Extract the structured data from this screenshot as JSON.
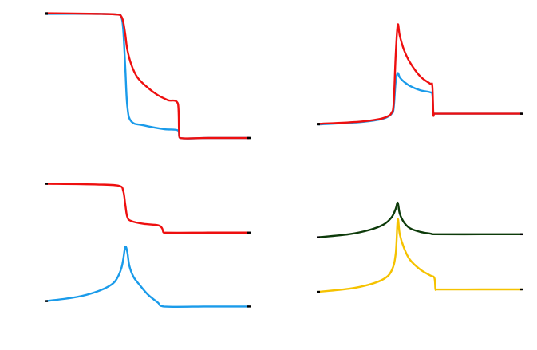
{
  "chart_data": [
    {
      "type": "line",
      "panel": "top-left",
      "xlim": [
        0,
        100
      ],
      "ylim": [
        0,
        1
      ],
      "grid": false,
      "series": [
        {
          "color": "#1a9bea",
          "points": [
            [
              0,
              0.985
            ],
            [
              25,
              0.985
            ],
            [
              35,
              0.98
            ],
            [
              37,
              0.96
            ],
            [
              38,
              0.85
            ],
            [
              39,
              0.55
            ],
            [
              40,
              0.25
            ],
            [
              42,
              0.13
            ],
            [
              48,
              0.1
            ],
            [
              58,
              0.07
            ],
            [
              65,
              0.06
            ],
            [
              66,
              0.0
            ],
            [
              80,
              0.0
            ],
            [
              100,
              0.0
            ]
          ]
        },
        {
          "color": "#ee0f0f",
          "points": [
            [
              0,
              0.99
            ],
            [
              25,
              0.985
            ],
            [
              35,
              0.98
            ],
            [
              37,
              0.965
            ],
            [
              38,
              0.92
            ],
            [
              39,
              0.82
            ],
            [
              40,
              0.7
            ],
            [
              42,
              0.58
            ],
            [
              45,
              0.48
            ],
            [
              50,
              0.4
            ],
            [
              55,
              0.34
            ],
            [
              60,
              0.3
            ],
            [
              65,
              0.27
            ],
            [
              65.5,
              0.05
            ],
            [
              66,
              0.0
            ],
            [
              80,
              0.0
            ],
            [
              100,
              0.0
            ]
          ]
        }
      ]
    },
    {
      "type": "line",
      "panel": "top-right",
      "xlim": [
        0,
        100
      ],
      "ylim": [
        0,
        1
      ],
      "grid": false,
      "series": [
        {
          "color": "#1a9bea",
          "points": [
            [
              0,
              0.0
            ],
            [
              20,
              0.02
            ],
            [
              30,
              0.045
            ],
            [
              34,
              0.07
            ],
            [
              36,
              0.1
            ],
            [
              37,
              0.15
            ],
            [
              38,
              0.4
            ],
            [
              39,
              0.48
            ],
            [
              40,
              0.44
            ],
            [
              42,
              0.4
            ],
            [
              45,
              0.36
            ],
            [
              50,
              0.32
            ],
            [
              55,
              0.3
            ],
            [
              56,
              0.28
            ],
            [
              56.5,
              0.1
            ],
            [
              57,
              0.1
            ],
            [
              80,
              0.1
            ],
            [
              100,
              0.1
            ]
          ]
        },
        {
          "color": "#ee0f0f",
          "points": [
            [
              0,
              0.005
            ],
            [
              20,
              0.025
            ],
            [
              30,
              0.05
            ],
            [
              34,
              0.075
            ],
            [
              36,
              0.11
            ],
            [
              37,
              0.2
            ],
            [
              38,
              0.65
            ],
            [
              39,
              0.93
            ],
            [
              40,
              0.83
            ],
            [
              42,
              0.7
            ],
            [
              45,
              0.58
            ],
            [
              50,
              0.45
            ],
            [
              55,
              0.38
            ],
            [
              56,
              0.36
            ],
            [
              56.5,
              0.1
            ],
            [
              57,
              0.1
            ],
            [
              80,
              0.1
            ],
            [
              100,
              0.1
            ]
          ]
        }
      ]
    },
    {
      "type": "line",
      "panel": "bottom-left",
      "xlim": [
        0,
        100
      ],
      "ylim": [
        0,
        1
      ],
      "grid": false,
      "series": [
        {
          "color": "#ee0f0f",
          "points": [
            [
              0,
              0.985
            ],
            [
              25,
              0.98
            ],
            [
              36,
              0.97
            ],
            [
              38,
              0.93
            ],
            [
              39,
              0.83
            ],
            [
              40,
              0.74
            ],
            [
              42,
              0.71
            ],
            [
              48,
              0.69
            ],
            [
              55,
              0.68
            ],
            [
              57,
              0.66
            ],
            [
              57.5,
              0.64
            ],
            [
              58,
              0.625
            ],
            [
              80,
              0.625
            ],
            [
              100,
              0.625
            ]
          ]
        },
        {
          "color": "#1a9bea",
          "points": [
            [
              0,
              0.12
            ],
            [
              15,
              0.15
            ],
            [
              25,
              0.19
            ],
            [
              32,
              0.24
            ],
            [
              35,
              0.29
            ],
            [
              37,
              0.36
            ],
            [
              38,
              0.43
            ],
            [
              39,
              0.52
            ],
            [
              40,
              0.48
            ],
            [
              41,
              0.38
            ],
            [
              43,
              0.3
            ],
            [
              46,
              0.24
            ],
            [
              50,
              0.17
            ],
            [
              55,
              0.11
            ],
            [
              58,
              0.08
            ],
            [
              80,
              0.08
            ],
            [
              100,
              0.08
            ]
          ]
        }
      ]
    },
    {
      "type": "line",
      "panel": "bottom-right",
      "xlim": [
        0,
        100
      ],
      "ylim": [
        0,
        1
      ],
      "grid": false,
      "series": [
        {
          "color": "#0d3b0a",
          "points": [
            [
              0,
              0.555
            ],
            [
              15,
              0.58
            ],
            [
              25,
              0.615
            ],
            [
              32,
              0.66
            ],
            [
              36,
              0.72
            ],
            [
              38,
              0.79
            ],
            [
              39,
              0.84
            ],
            [
              40,
              0.75
            ],
            [
              42,
              0.68
            ],
            [
              45,
              0.63
            ],
            [
              50,
              0.6
            ],
            [
              55,
              0.585
            ],
            [
              57,
              0.58
            ],
            [
              80,
              0.58
            ],
            [
              100,
              0.58
            ]
          ]
        },
        {
          "color": "#f5c200",
          "points": [
            [
              0,
              0.105
            ],
            [
              15,
              0.13
            ],
            [
              25,
              0.165
            ],
            [
              32,
              0.21
            ],
            [
              36,
              0.28
            ],
            [
              38,
              0.42
            ],
            [
              39,
              0.7
            ],
            [
              40,
              0.58
            ],
            [
              42,
              0.47
            ],
            [
              45,
              0.37
            ],
            [
              50,
              0.29
            ],
            [
              55,
              0.24
            ],
            [
              57,
              0.22
            ],
            [
              57.5,
              0.13
            ],
            [
              58,
              0.125
            ],
            [
              80,
              0.125
            ],
            [
              100,
              0.125
            ]
          ]
        }
      ]
    }
  ]
}
